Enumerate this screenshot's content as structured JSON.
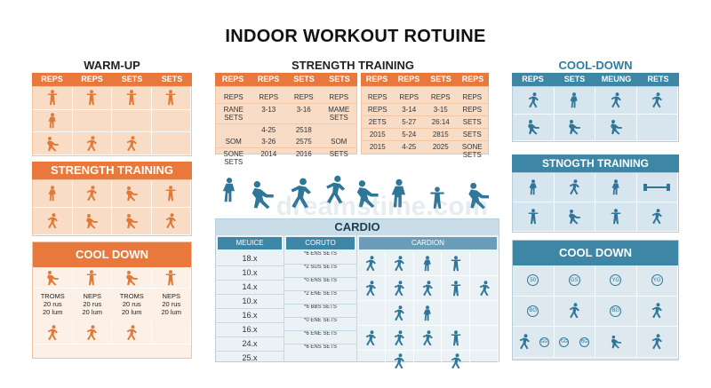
{
  "title": "INDOOR WORKOUT ROTUINE",
  "warmup": {
    "title": "WARM-UP",
    "headers": [
      "REPS",
      "REPS",
      "SETS",
      "SETS"
    ]
  },
  "strength_left": {
    "title": "STRENGTH TRAINING"
  },
  "cooldown_left": {
    "title": "COOL DOWN",
    "rows": [
      [
        "TROMS",
        "NEPS",
        "TROMS",
        "NEPS"
      ],
      [
        "20 rus",
        "20 rus",
        "20 rus",
        "20 rus"
      ],
      [
        "20 lum",
        "20 lum",
        "20 lum",
        "20 lum"
      ]
    ]
  },
  "strength_center": {
    "title": "STRENGTH TRAINING",
    "table1": {
      "headers": [
        "REPS",
        "REPS",
        "SETS",
        "SETS"
      ],
      "rows": [
        [
          "REPS",
          "REPS",
          "REPS",
          "REPS"
        ],
        [
          "RANE SETS",
          "3-13",
          "3-16",
          "MAME SETS"
        ],
        [
          "",
          "4-25",
          "2518",
          ""
        ],
        [
          "SOM",
          "3-26",
          "2575",
          "SOM"
        ],
        [
          "SONE SETS",
          "2014",
          "2016",
          "SETS"
        ]
      ]
    },
    "table2": {
      "headers": [
        "REPS",
        "REPS",
        "SETS",
        "REPS"
      ],
      "rows": [
        [
          "REPS",
          "REPS",
          "REPS",
          "REPS"
        ],
        [
          "REPS",
          "3-14",
          "3-15",
          "REPS"
        ],
        [
          "2ETS",
          "5-27",
          "26:14",
          "SETS"
        ],
        [
          "2015",
          "5-24",
          "2815",
          "SETS"
        ],
        [
          "2015",
          "4-25",
          "2025",
          "SONE SETS"
        ]
      ]
    }
  },
  "cardio": {
    "title": "CARDIO",
    "col1_header": "MEUICE",
    "col2_header": "CORUTO",
    "col3_header": "CARDION",
    "col1": [
      "18.x",
      "10.x",
      "14.x",
      "10.x",
      "16.x",
      "16.x",
      "24.x",
      "25.x"
    ],
    "col2": [
      "*6 ENS SETS",
      "*2 SUS SETS",
      "*0 ENS SETS",
      "*2 ENE SETS",
      "*6 BBS SETS",
      "*0 ENE SETS",
      "*6 ENE SETS",
      "*6 ENS SETS"
    ]
  },
  "cooldown_right": {
    "title": "COOL-DOWN",
    "headers": [
      "REPS",
      "SETS",
      "MEUNG",
      "RETS"
    ]
  },
  "strength_right": {
    "title": "STNOGTH TRAINING"
  },
  "cooldown_right2": {
    "title": "COOL DOWN",
    "badges": [
      "50",
      "GS",
      "YG",
      "YG",
      "BG",
      "BG",
      "GG",
      "GG",
      "BG"
    ]
  },
  "watermark": "dreamstime.com",
  "colors": {
    "orange": "#e8783c",
    "orange_light": "#f9dcc6",
    "blue": "#3d86a6",
    "blue_light": "#d7e6ee"
  }
}
